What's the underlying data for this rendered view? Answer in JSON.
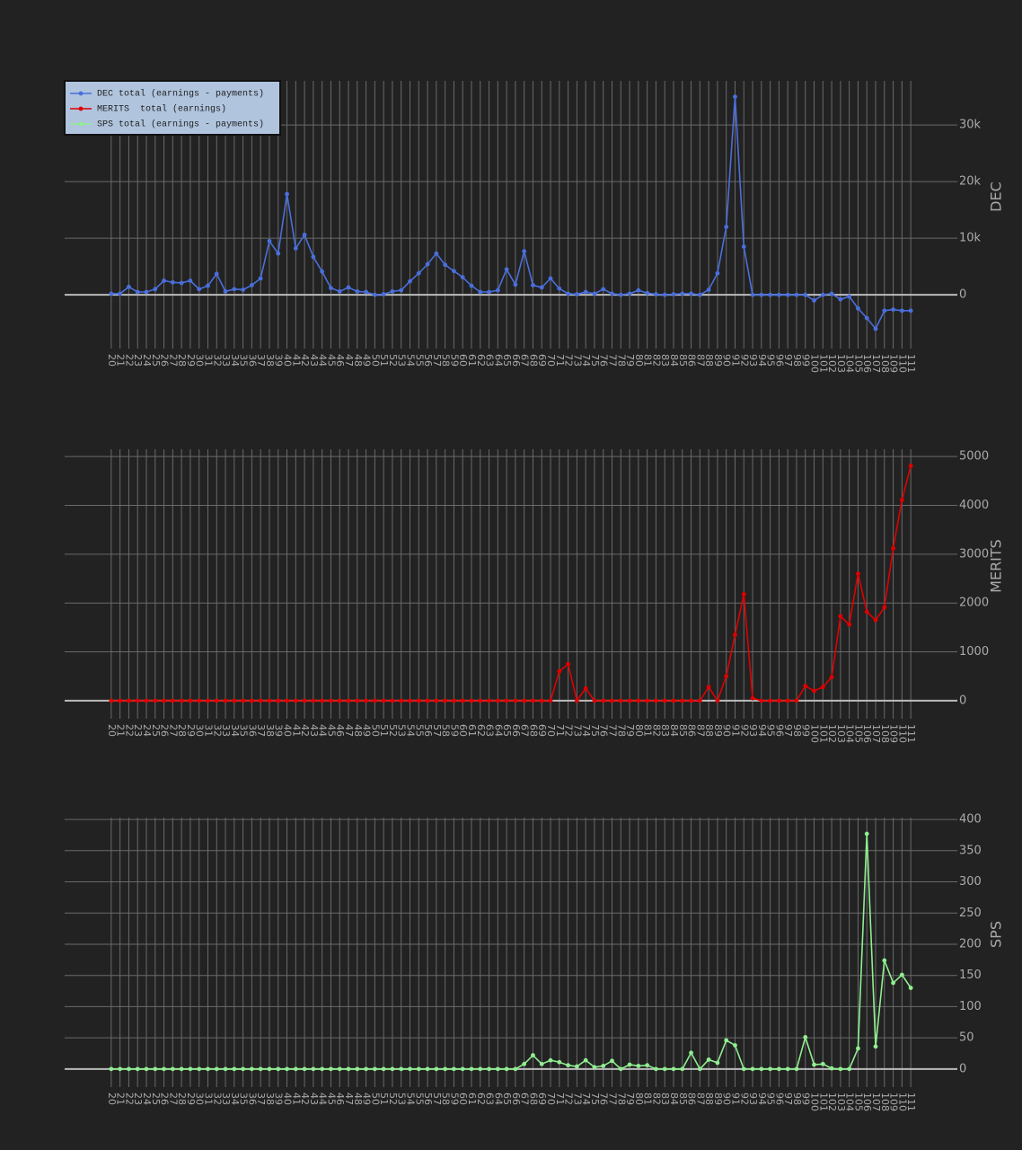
{
  "chart_data": [
    {
      "type": "line",
      "ylabel": "DEC",
      "grid": true,
      "legend": "upper left",
      "categories": [
        20,
        21,
        22,
        23,
        24,
        25,
        26,
        27,
        28,
        29,
        30,
        31,
        32,
        33,
        34,
        35,
        36,
        37,
        38,
        39,
        40,
        41,
        42,
        43,
        44,
        45,
        46,
        47,
        48,
        49,
        50,
        51,
        52,
        53,
        54,
        55,
        56,
        57,
        58,
        59,
        60,
        61,
        62,
        63,
        64,
        65,
        66,
        67,
        68,
        69,
        70,
        71,
        72,
        73,
        74,
        75,
        76,
        77,
        78,
        79,
        80,
        81,
        82,
        83,
        84,
        85,
        86,
        87,
        88,
        89,
        90,
        91,
        92,
        93,
        94,
        95,
        96,
        97,
        98,
        99,
        100,
        101,
        102,
        103,
        104,
        105,
        106,
        107,
        108,
        109,
        110,
        111
      ],
      "series": [
        {
          "name": "DEC total (earnings - payments)",
          "color": "#4a6fdc",
          "values": [
            200,
            200,
            1400,
            500,
            500,
            1000,
            2500,
            2200,
            2100,
            2500,
            1000,
            1600,
            3700,
            600,
            1000,
            900,
            1700,
            2900,
            9500,
            7300,
            17800,
            8200,
            10600,
            6700,
            4100,
            1200,
            600,
            1300,
            600,
            500,
            0,
            100,
            600,
            800,
            2400,
            3800,
            5400,
            7300,
            5300,
            4200,
            3100,
            1600,
            500,
            500,
            800,
            4500,
            1800,
            7700,
            1700,
            1300,
            2900,
            1100,
            200,
            100,
            500,
            200,
            1000,
            200,
            0,
            200,
            800,
            300,
            100,
            0,
            100,
            200,
            200,
            0,
            900,
            3800,
            12000,
            35000,
            8500,
            0,
            0,
            0,
            0,
            0,
            0,
            0,
            -1000,
            0,
            200,
            -800,
            -300,
            -2400,
            -4100,
            -6000,
            -2800,
            -2600,
            -2800,
            -2800
          ]
        }
      ],
      "ylim": [
        -9500,
        37800
      ],
      "yticks": [
        0,
        {
          "value": 10000,
          "label": "10k"
        },
        {
          "value": 20000,
          "label": "20k"
        },
        {
          "value": 30000,
          "label": "30k"
        }
      ]
    },
    {
      "type": "line",
      "ylabel": "MERITS",
      "grid": true,
      "categories": [
        20,
        21,
        22,
        23,
        24,
        25,
        26,
        27,
        28,
        29,
        30,
        31,
        32,
        33,
        34,
        35,
        36,
        37,
        38,
        39,
        40,
        41,
        42,
        43,
        44,
        45,
        46,
        47,
        48,
        49,
        50,
        51,
        52,
        53,
        54,
        55,
        56,
        57,
        58,
        59,
        60,
        61,
        62,
        63,
        64,
        65,
        66,
        67,
        68,
        69,
        70,
        71,
        72,
        73,
        74,
        75,
        76,
        77,
        78,
        79,
        80,
        81,
        82,
        83,
        84,
        85,
        86,
        87,
        88,
        89,
        90,
        91,
        92,
        93,
        94,
        95,
        96,
        97,
        98,
        99,
        100,
        101,
        102,
        103,
        104,
        105,
        106,
        107,
        108,
        109,
        110,
        111
      ],
      "series": [
        {
          "name": "MERITS  total (earnings)",
          "color": "#e00000",
          "values": [
            0,
            0,
            0,
            0,
            0,
            0,
            0,
            0,
            0,
            0,
            0,
            0,
            0,
            0,
            0,
            0,
            0,
            0,
            0,
            0,
            0,
            0,
            0,
            0,
            0,
            0,
            0,
            0,
            0,
            0,
            0,
            0,
            0,
            0,
            0,
            0,
            0,
            0,
            0,
            0,
            0,
            0,
            0,
            0,
            0,
            0,
            0,
            0,
            0,
            0,
            0,
            600,
            750,
            0,
            250,
            0,
            0,
            0,
            0,
            0,
            0,
            0,
            0,
            0,
            0,
            0,
            0,
            0,
            280,
            0,
            500,
            1350,
            2180,
            50,
            0,
            0,
            0,
            0,
            0,
            300,
            200,
            280,
            480,
            1730,
            1560,
            2600,
            1820,
            1650,
            1910,
            3120,
            4110,
            4810
          ]
        }
      ],
      "ylim": [
        -370,
        5150
      ],
      "yticks": [
        0,
        1000,
        2000,
        3000,
        4000,
        5000
      ]
    },
    {
      "type": "line",
      "ylabel": "SPS",
      "grid": true,
      "categories": [
        20,
        21,
        22,
        23,
        24,
        25,
        26,
        27,
        28,
        29,
        30,
        31,
        32,
        33,
        34,
        35,
        36,
        37,
        38,
        39,
        40,
        41,
        42,
        43,
        44,
        45,
        46,
        47,
        48,
        49,
        50,
        51,
        52,
        53,
        54,
        55,
        56,
        57,
        58,
        59,
        60,
        61,
        62,
        63,
        64,
        65,
        66,
        67,
        68,
        69,
        70,
        71,
        72,
        73,
        74,
        75,
        76,
        77,
        78,
        79,
        80,
        81,
        82,
        83,
        84,
        85,
        86,
        87,
        88,
        89,
        90,
        91,
        92,
        93,
        94,
        95,
        96,
        97,
        98,
        99,
        100,
        101,
        102,
        103,
        104,
        105,
        106,
        107,
        108,
        109,
        110,
        111
      ],
      "series": [
        {
          "name": "SPS total (earnings - payments)",
          "color": "#90ee90",
          "values": [
            0,
            0,
            0,
            0,
            0,
            0,
            0,
            0,
            0,
            0,
            0,
            0,
            0,
            0,
            0,
            0,
            0,
            0,
            0,
            0,
            0,
            0,
            0,
            0,
            0,
            0,
            0,
            0,
            0,
            0,
            0,
            0,
            0,
            0,
            0,
            0,
            0,
            0,
            0,
            0,
            0,
            0,
            0,
            0,
            0,
            0,
            0,
            8,
            22,
            8,
            14,
            11,
            6,
            4,
            14,
            3,
            5,
            13,
            0,
            7,
            5,
            6,
            0,
            0,
            0,
            0,
            26,
            0,
            15,
            10,
            46,
            38,
            0,
            0,
            0,
            0,
            0,
            0,
            0,
            51,
            7,
            8,
            1,
            0,
            0,
            33,
            377,
            36,
            174,
            138,
            151,
            130
          ]
        }
      ],
      "ylim": [
        -29,
        403
      ],
      "yticks": [
        0,
        50,
        100,
        150,
        200,
        250,
        300,
        350,
        400
      ]
    }
  ]
}
